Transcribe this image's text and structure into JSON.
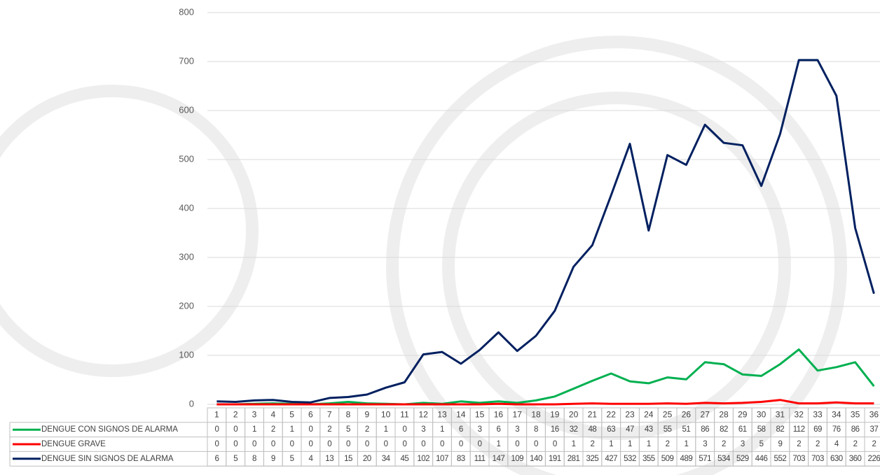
{
  "chart_data": {
    "type": "line",
    "categories": [
      "1",
      "2",
      "3",
      "4",
      "5",
      "6",
      "7",
      "8",
      "9",
      "10",
      "11",
      "12",
      "13",
      "14",
      "15",
      "16",
      "17",
      "18",
      "19",
      "20",
      "21",
      "22",
      "23",
      "24",
      "25",
      "26",
      "27",
      "28",
      "29",
      "30",
      "31",
      "32",
      "33",
      "34",
      "35",
      "36"
    ],
    "series": [
      {
        "name": "DENGUE CON SIGNOS DE ALARMA",
        "color": "#00b050",
        "values": [
          0,
          0,
          1,
          2,
          1,
          0,
          2,
          5,
          2,
          1,
          0,
          3,
          1,
          6,
          3,
          6,
          3,
          8,
          16,
          32,
          48,
          63,
          47,
          43,
          55,
          51,
          86,
          82,
          61,
          58,
          82,
          112,
          69,
          76,
          86,
          37
        ]
      },
      {
        "name": "DENGUE GRAVE",
        "color": "#ff0000",
        "values": [
          0,
          0,
          0,
          0,
          0,
          0,
          0,
          0,
          0,
          0,
          0,
          0,
          0,
          0,
          0,
          1,
          0,
          0,
          0,
          1,
          2,
          1,
          1,
          1,
          2,
          1,
          3,
          2,
          3,
          5,
          9,
          2,
          2,
          4,
          2,
          2
        ]
      },
      {
        "name": "DENGUE SIN SIGNOS DE ALARMA",
        "color": "#002060",
        "values": [
          6,
          5,
          8,
          9,
          5,
          4,
          13,
          15,
          20,
          34,
          45,
          102,
          107,
          83,
          111,
          147,
          109,
          140,
          191,
          281,
          325,
          427,
          532,
          355,
          509,
          489,
          571,
          534,
          529,
          446,
          552,
          703,
          703,
          630,
          360,
          226
        ]
      }
    ],
    "ylim": [
      0,
      800
    ],
    "yticks": [
      0,
      100,
      200,
      300,
      400,
      500,
      600,
      700,
      800
    ],
    "grid": true
  }
}
